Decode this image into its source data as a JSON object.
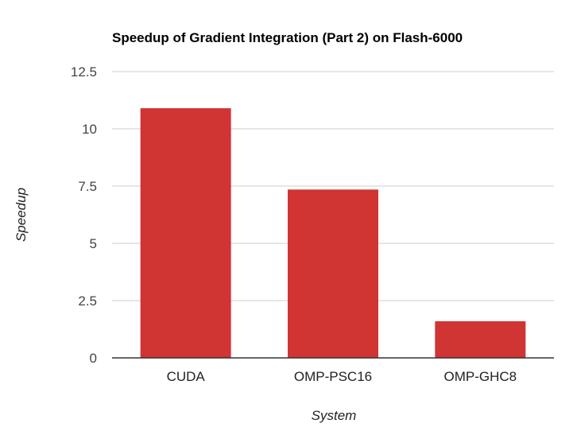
{
  "chart_data": {
    "type": "bar",
    "title": "Speedup of Gradient Integration (Part 2) on Flash-6000",
    "xlabel": "System",
    "ylabel": "Speedup",
    "categories": [
      "CUDA",
      "OMP-PSC16",
      "OMP-GHC8"
    ],
    "values": [
      10.9,
      7.35,
      1.6
    ],
    "ylim": [
      0,
      12.5
    ],
    "yticks": [
      0,
      2.5,
      5,
      7.5,
      10,
      12.5
    ],
    "ytick_labels": [
      "0",
      "2.5",
      "5",
      "7.5",
      "10",
      "12.5"
    ],
    "grid": true,
    "legend": "none",
    "bar_color": "#d03433",
    "grid_color": "#cccccc",
    "baseline_color": "#333333"
  }
}
